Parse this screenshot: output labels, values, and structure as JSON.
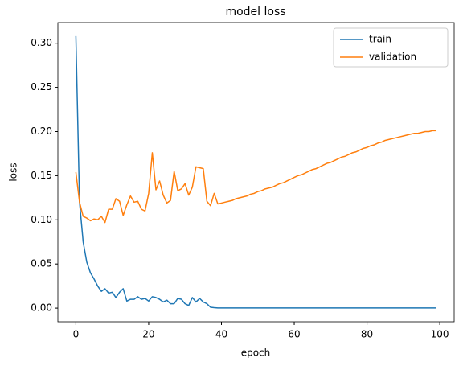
{
  "chart_data": {
    "type": "line",
    "title": "model loss",
    "xlabel": "epoch",
    "ylabel": "loss",
    "x": [
      0,
      1,
      2,
      3,
      4,
      5,
      6,
      7,
      8,
      9,
      10,
      11,
      12,
      13,
      14,
      15,
      16,
      17,
      18,
      19,
      20,
      21,
      22,
      23,
      24,
      25,
      26,
      27,
      28,
      29,
      30,
      31,
      32,
      33,
      34,
      35,
      36,
      37,
      38,
      39,
      40,
      41,
      42,
      43,
      44,
      45,
      46,
      47,
      48,
      49,
      50,
      51,
      52,
      53,
      54,
      55,
      56,
      57,
      58,
      59,
      60,
      61,
      62,
      63,
      64,
      65,
      66,
      67,
      68,
      69,
      70,
      71,
      72,
      73,
      74,
      75,
      76,
      77,
      78,
      79,
      80,
      81,
      82,
      83,
      84,
      85,
      86,
      87,
      88,
      89,
      90,
      91,
      92,
      93,
      94,
      95,
      96,
      97,
      98,
      99
    ],
    "series": [
      {
        "name": "train",
        "color": "#1f77b4",
        "values": [
          0.308,
          0.12,
          0.075,
          0.052,
          0.04,
          0.033,
          0.025,
          0.019,
          0.022,
          0.017,
          0.018,
          0.012,
          0.018,
          0.022,
          0.008,
          0.01,
          0.01,
          0.013,
          0.01,
          0.011,
          0.008,
          0.013,
          0.012,
          0.01,
          0.007,
          0.009,
          0.005,
          0.005,
          0.011,
          0.01,
          0.005,
          0.003,
          0.012,
          0.007,
          0.011,
          0.007,
          0.005,
          0.001,
          0.0005,
          0.0002,
          0.0002,
          0.0002,
          0.0002,
          0.0002,
          0.0002,
          0.0002,
          0.0002,
          0.0002,
          0.0002,
          0.0002,
          0.0002,
          0.0002,
          0.0002,
          0.0002,
          0.0002,
          0.0002,
          0.0002,
          0.0002,
          0.0002,
          0.0002,
          0.0002,
          0.0002,
          0.0002,
          0.0002,
          0.0002,
          0.0002,
          0.0002,
          0.0002,
          0.0002,
          0.0002,
          0.0002,
          0.0002,
          0.0002,
          0.0002,
          0.0002,
          0.0002,
          0.0002,
          0.0002,
          0.0002,
          0.0002,
          0.0002,
          0.0002,
          0.0002,
          0.0002,
          0.0002,
          0.0002,
          0.0002,
          0.0002,
          0.0002,
          0.0002,
          0.0002,
          0.0002,
          0.0002,
          0.0002,
          0.0002,
          0.0002,
          0.0002,
          0.0002,
          0.0002,
          0.0002
        ]
      },
      {
        "name": "validation",
        "color": "#ff7f0e",
        "values": [
          0.154,
          0.12,
          0.104,
          0.102,
          0.099,
          0.101,
          0.1,
          0.104,
          0.097,
          0.112,
          0.112,
          0.124,
          0.121,
          0.105,
          0.117,
          0.127,
          0.12,
          0.121,
          0.112,
          0.11,
          0.13,
          0.176,
          0.134,
          0.144,
          0.128,
          0.119,
          0.122,
          0.155,
          0.133,
          0.135,
          0.141,
          0.128,
          0.137,
          0.16,
          0.159,
          0.158,
          0.121,
          0.116,
          0.13,
          0.118,
          0.119,
          0.12,
          0.121,
          0.122,
          0.124,
          0.125,
          0.126,
          0.127,
          0.129,
          0.13,
          0.132,
          0.133,
          0.135,
          0.136,
          0.137,
          0.139,
          0.141,
          0.142,
          0.144,
          0.146,
          0.148,
          0.15,
          0.151,
          0.153,
          0.155,
          0.157,
          0.158,
          0.16,
          0.162,
          0.164,
          0.165,
          0.167,
          0.169,
          0.171,
          0.172,
          0.174,
          0.176,
          0.177,
          0.179,
          0.181,
          0.182,
          0.184,
          0.185,
          0.187,
          0.188,
          0.19,
          0.191,
          0.192,
          0.193,
          0.194,
          0.195,
          0.196,
          0.197,
          0.198,
          0.198,
          0.199,
          0.2,
          0.2,
          0.201,
          0.201
        ]
      }
    ],
    "xlim": [
      -4.95,
      103.95
    ],
    "xticks": [
      0,
      20,
      40,
      60,
      80,
      100
    ],
    "ylim": [
      -0.0154,
      0.3234
    ],
    "yticks": [
      {
        "value": 0,
        "label": "0.00"
      },
      0.05,
      {
        "value": 0.1,
        "label": "0.10"
      },
      0.15,
      {
        "value": 0.2,
        "label": "0.20"
      },
      0.25,
      {
        "value": 0.3,
        "label": "0.30"
      }
    ],
    "legend": "upper right"
  }
}
